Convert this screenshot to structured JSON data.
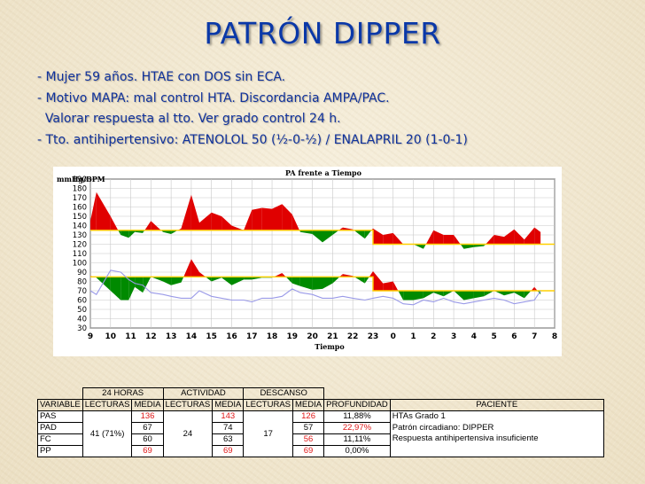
{
  "slide": {
    "title": "PATRÓN DIPPER",
    "bullets": [
      "- Mujer 59 años. HTAE con DOS sin ECA.",
      "- Motivo MAPA: mal control HTA. Discordancia AMPA/PAC.",
      "  Valorar respuesta al tto. Ver grado control 24 h.",
      "- Tto. antihipertensivo: ATENOLOL 50 (½-0-½) / ENALAPRIL 20 (1-0-1)"
    ]
  },
  "chart_data": {
    "type": "line",
    "title": "PA frente a Tiempo",
    "ylabel": "mmHg/BPM",
    "xlabel": "Tiempo",
    "x_ticks": [
      "9",
      "10",
      "11",
      "12",
      "13",
      "14",
      "15",
      "16",
      "17",
      "18",
      "19",
      "20",
      "21",
      "22",
      "23",
      "0",
      "1",
      "2",
      "3",
      "4",
      "5",
      "6",
      "7",
      "8"
    ],
    "y_ticks": [
      190,
      180,
      170,
      160,
      150,
      140,
      130,
      120,
      110,
      100,
      90,
      80,
      70,
      60,
      50,
      40,
      30
    ],
    "ylim": [
      30,
      190
    ],
    "grid": true,
    "thresholds": {
      "systolic_day": 135,
      "systolic_night": 120,
      "diastolic_day": 85,
      "diastolic_night": 70
    },
    "x": [
      9.0,
      9.3,
      10.0,
      10.5,
      10.9,
      11.2,
      11.6,
      12.0,
      12.6,
      13.0,
      13.5,
      14.0,
      14.4,
      15.0,
      15.5,
      16.0,
      16.6,
      17.0,
      17.5,
      18.0,
      18.5,
      19.0,
      19.4,
      20.0,
      20.5,
      21.0,
      21.5,
      22.0,
      22.6,
      23.0,
      23.5,
      24.0,
      24.5,
      25.0,
      25.5,
      26.0,
      26.5,
      27.0,
      27.5,
      28.0,
      28.5,
      29.0,
      29.5,
      30.0,
      30.5,
      31.0,
      31.3
    ],
    "series": [
      {
        "name": "PAS",
        "values": [
          145,
          176,
          150,
          130,
          127,
          133,
          132,
          145,
          133,
          131,
          137,
          173,
          143,
          154,
          150,
          140,
          135,
          157,
          159,
          158,
          163,
          152,
          133,
          131,
          122,
          130,
          138,
          136,
          126,
          137,
          130,
          132,
          120,
          120,
          115,
          135,
          130,
          130,
          115,
          117,
          118,
          130,
          128,
          136,
          125,
          138,
          133
        ]
      },
      {
        "name": "PAD",
        "values": [
          86,
          84,
          70,
          60,
          60,
          74,
          68,
          85,
          80,
          76,
          79,
          104,
          90,
          80,
          84,
          76,
          82,
          82,
          84,
          84,
          89,
          78,
          75,
          71,
          72,
          78,
          88,
          86,
          78,
          91,
          78,
          80,
          60,
          60,
          62,
          68,
          64,
          70,
          60,
          62,
          64,
          70,
          65,
          68,
          62,
          74,
          66
        ]
      },
      {
        "name": "FC",
        "values": [
          70,
          66,
          92,
          90,
          82,
          78,
          76,
          68,
          66,
          64,
          62,
          62,
          70,
          64,
          62,
          60,
          60,
          58,
          62,
          62,
          64,
          72,
          68,
          66,
          62,
          62,
          64,
          62,
          60,
          62,
          64,
          62,
          56,
          55,
          60,
          58,
          62,
          58,
          56,
          58,
          60,
          62,
          60,
          56,
          58,
          60,
          70
        ]
      }
    ]
  },
  "table": {
    "group_headers": [
      "24 HORAS",
      "ACTIVIDAD",
      "DESCANSO"
    ],
    "columns": [
      "VARIABLE",
      "LECTURAS",
      "MEDIA",
      "LECTURAS",
      "MEDIA",
      "LECTURAS",
      "MEDIA",
      "PROFUNDIDAD",
      "PACIENTE"
    ],
    "lecturas": {
      "h24": "41 (71%)",
      "actividad": "24",
      "descanso": "17"
    },
    "rows": [
      {
        "variable": "PAS",
        "media24": "136",
        "mediaAct": "143",
        "mediaDesc": "126",
        "profundidad": "11,88%"
      },
      {
        "variable": "PAD",
        "media24": "67",
        "mediaAct": "74",
        "mediaDesc": "57",
        "profundidad": "22,97%"
      },
      {
        "variable": "FC",
        "media24": "60",
        "mediaAct": "63",
        "mediaDesc": "56",
        "profundidad": "11,11%"
      },
      {
        "variable": "PP",
        "media24": "69",
        "mediaAct": "69",
        "mediaDesc": "69",
        "profundidad": "0,00%"
      }
    ],
    "paciente": [
      "HTAs Grado 1",
      "Patrón circadiano: DIPPER",
      "Respuesta antihipertensiva insuficiente"
    ]
  },
  "colors": {
    "title": "#0a38a8",
    "above": "#e00000",
    "below": "#008a00",
    "threshold": "#ffd000",
    "fc_line": "#9a9ae8",
    "highlight": "#e01818"
  }
}
